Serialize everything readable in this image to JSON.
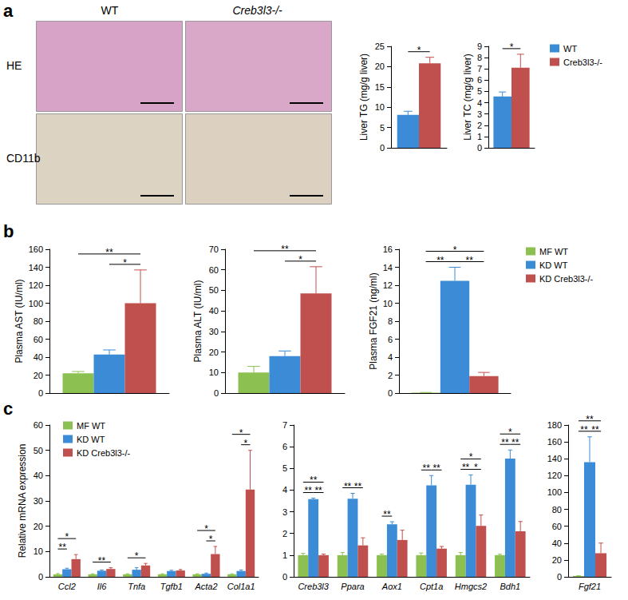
{
  "figure": {
    "panel_labels": [
      "a",
      "b",
      "c"
    ],
    "image_columns": [
      "WT",
      "Creb3l3-/-"
    ],
    "image_rows": [
      "HE",
      "CD11b"
    ]
  },
  "chart_data": [
    {
      "type": "bar",
      "y_label": "Liver TG (mg/g liver)",
      "categories": [
        null
      ],
      "series": [
        {
          "name": "WT",
          "color": "#3b8bd6",
          "values": [
            8.1
          ],
          "errors": [
            0.9
          ]
        },
        {
          "name": "Creb3l3-/-",
          "color": "#c0504d",
          "values": [
            20.8
          ],
          "errors": [
            1.5
          ]
        }
      ],
      "ylim": [
        0,
        25
      ],
      "yticks": [
        0,
        5,
        10,
        15,
        20,
        25
      ],
      "grid": false,
      "significance": [
        {
          "pair": [
            "WT",
            "Creb3l3-/-"
          ],
          "label": "*"
        }
      ]
    },
    {
      "type": "bar",
      "y_label": "Liver TC (mg/g liver)",
      "categories": [
        null
      ],
      "series": [
        {
          "name": "WT",
          "color": "#3b8bd6",
          "values": [
            4.55
          ],
          "errors": [
            0.4
          ]
        },
        {
          "name": "Creb3l3-/-",
          "color": "#c0504d",
          "values": [
            7.1
          ],
          "errors": [
            1.2
          ]
        }
      ],
      "ylim": [
        0,
        9
      ],
      "yticks": [
        0,
        1,
        2,
        3,
        4,
        5,
        6,
        7,
        8,
        9
      ],
      "grid": false,
      "legend": "right",
      "significance": [
        {
          "pair": [
            "WT",
            "Creb3l3-/-"
          ],
          "label": "*"
        }
      ]
    },
    {
      "type": "bar",
      "y_label": "Plasma AST (IU/ml)",
      "categories": [
        null
      ],
      "series": [
        {
          "name": "MF WT",
          "color": "#8cc152",
          "values": [
            22
          ],
          "errors": [
            2
          ]
        },
        {
          "name": "KD WT",
          "color": "#3b8bd6",
          "values": [
            43
          ],
          "errors": [
            5
          ]
        },
        {
          "name": "KD Creb3l3-/-",
          "color": "#c0504d",
          "values": [
            100
          ],
          "errors": [
            37
          ]
        }
      ],
      "ylim": [
        0,
        160
      ],
      "yticks": [
        0,
        20,
        40,
        60,
        80,
        100,
        120,
        140,
        160
      ],
      "grid": false,
      "significance": [
        {
          "pair": [
            "MF WT",
            "KD Creb3l3-/-"
          ],
          "label": "**"
        },
        {
          "pair": [
            "KD WT",
            "KD Creb3l3-/-"
          ],
          "label": "*"
        }
      ]
    },
    {
      "type": "bar",
      "y_label": "Plasma ALT (IU/ml)",
      "categories": [
        null
      ],
      "series": [
        {
          "name": "MF WT",
          "color": "#8cc152",
          "values": [
            10
          ],
          "errors": [
            3
          ]
        },
        {
          "name": "KD WT",
          "color": "#3b8bd6",
          "values": [
            18
          ],
          "errors": [
            2.5
          ]
        },
        {
          "name": "KD Creb3l3-/-",
          "color": "#c0504d",
          "values": [
            48.5
          ],
          "errors": [
            13
          ]
        }
      ],
      "ylim": [
        0,
        70
      ],
      "yticks": [
        0,
        10,
        20,
        30,
        40,
        50,
        60,
        70
      ],
      "grid": false,
      "significance": [
        {
          "pair": [
            "MF WT",
            "KD Creb3l3-/-"
          ],
          "label": "**"
        },
        {
          "pair": [
            "KD WT",
            "KD Creb3l3-/-"
          ],
          "label": "*"
        }
      ]
    },
    {
      "type": "bar",
      "y_label": "Plasma FGF21 (ng/ml)",
      "categories": [
        null
      ],
      "series": [
        {
          "name": "MF WT",
          "color": "#8cc152",
          "values": [
            0.05
          ],
          "errors": [
            0.02
          ]
        },
        {
          "name": "KD WT",
          "color": "#3b8bd6",
          "values": [
            12.5
          ],
          "errors": [
            1.5
          ]
        },
        {
          "name": "KD Creb3l3-/-",
          "color": "#c0504d",
          "values": [
            1.9
          ],
          "errors": [
            0.4
          ]
        }
      ],
      "ylim": [
        0,
        16
      ],
      "yticks": [
        0,
        2,
        4,
        6,
        8,
        10,
        12,
        14,
        16
      ],
      "grid": false,
      "legend": "right",
      "significance": [
        {
          "pair": [
            "MF WT",
            "KD WT"
          ],
          "label": "**"
        },
        {
          "pair": [
            "KD WT",
            "KD Creb3l3-/-"
          ],
          "label": "**"
        },
        {
          "pair": [
            "MF WT",
            "KD Creb3l3-/-"
          ],
          "label": "*"
        }
      ]
    },
    {
      "type": "bar",
      "y_label": "Relative mRNA expression",
      "categories": [
        "Ccl2",
        "Il6",
        "Tnfa",
        "Tgfb1",
        "Acta2",
        "Col1a1"
      ],
      "series": [
        {
          "name": "MF WT",
          "color": "#8cc152",
          "values": [
            1,
            1,
            1,
            1,
            1,
            1
          ],
          "errors": [
            0.3,
            0.2,
            0.2,
            0.2,
            0.2,
            0.2
          ]
        },
        {
          "name": "KD WT",
          "color": "#3b8bd6",
          "values": [
            3,
            2.4,
            2.8,
            2.3,
            1.2,
            2.3
          ],
          "errors": [
            0.4,
            0.3,
            0.8,
            0.3,
            0.3,
            0.4
          ]
        },
        {
          "name": "KD Creb3l3-/-",
          "color": "#c0504d",
          "values": [
            7,
            3.1,
            4.5,
            2.5,
            9,
            34.5
          ],
          "errors": [
            1.8,
            0.5,
            0.8,
            0.4,
            3,
            15.5
          ]
        }
      ],
      "ylim": [
        0,
        60
      ],
      "yticks": [
        0,
        10,
        20,
        30,
        40,
        50,
        60
      ],
      "grid": false,
      "legend": "upper left",
      "significance": [
        {
          "category": "Ccl2",
          "pair": [
            "MF WT",
            "KD WT"
          ],
          "label": "**"
        },
        {
          "category": "Ccl2",
          "pair": [
            "MF WT",
            "KD Creb3l3-/-"
          ],
          "label": "*"
        },
        {
          "category": "Il6",
          "pair": [
            "MF WT",
            "KD Creb3l3-/-"
          ],
          "label": "**"
        },
        {
          "category": "Tnfa",
          "pair": [
            "MF WT",
            "KD Creb3l3-/-"
          ],
          "label": "*"
        },
        {
          "category": "Acta2",
          "pair": [
            "MF WT",
            "KD Creb3l3-/-"
          ],
          "label": "*"
        },
        {
          "category": "Acta2",
          "pair": [
            "KD WT",
            "KD Creb3l3-/-"
          ],
          "label": "*"
        },
        {
          "category": "Col1a1",
          "pair": [
            "MF WT",
            "KD Creb3l3-/-"
          ],
          "label": "*"
        },
        {
          "category": "Col1a1",
          "pair": [
            "KD WT",
            "KD Creb3l3-/-"
          ],
          "label": "*"
        }
      ]
    },
    {
      "type": "bar",
      "categories": [
        "Creb3l3",
        "Ppara",
        "Aox1",
        "Cpt1a",
        "Hmgcs2",
        "Bdh1"
      ],
      "series": [
        {
          "name": "MF WT",
          "color": "#8cc152",
          "values": [
            1,
            1,
            1,
            1,
            1,
            1
          ],
          "errors": [
            0.08,
            0.12,
            0.05,
            0.1,
            0.12,
            0.04
          ]
        },
        {
          "name": "KD WT",
          "color": "#3b8bd6",
          "values": [
            3.58,
            3.6,
            2.42,
            4.22,
            4.25,
            5.45
          ],
          "errors": [
            0.05,
            0.25,
            0.12,
            0.45,
            0.45,
            0.4
          ]
        },
        {
          "name": "KD Creb3l3-/-",
          "color": "#c0504d",
          "values": [
            1,
            1.45,
            1.7,
            1.3,
            2.35,
            2.1
          ],
          "errors": [
            0.05,
            0.35,
            0.45,
            0.1,
            0.5,
            0.45
          ]
        }
      ],
      "ylim": [
        0,
        7
      ],
      "yticks": [
        0,
        1,
        2,
        3,
        4,
        5,
        6,
        7
      ],
      "grid": false,
      "significance": [
        {
          "category": "Creb3l3",
          "pair": [
            "MF WT",
            "KD WT"
          ],
          "label": "**"
        },
        {
          "category": "Creb3l3",
          "pair": [
            "KD WT",
            "KD Creb3l3-/-"
          ],
          "label": "**"
        },
        {
          "category": "Creb3l3",
          "pair": [
            "MF WT",
            "KD Creb3l3-/-"
          ],
          "label": "**"
        },
        {
          "category": "Ppara",
          "pair": [
            "MF WT",
            "KD WT"
          ],
          "label": "**"
        },
        {
          "category": "Ppara",
          "pair": [
            "KD WT",
            "KD Creb3l3-/-"
          ],
          "label": "**"
        },
        {
          "category": "Aox1",
          "pair": [
            "MF WT",
            "KD WT"
          ],
          "label": "**"
        },
        {
          "category": "Cpt1a",
          "pair": [
            "MF WT",
            "KD WT"
          ],
          "label": "**"
        },
        {
          "category": "Cpt1a",
          "pair": [
            "KD WT",
            "KD Creb3l3-/-"
          ],
          "label": "**"
        },
        {
          "category": "Hmgcs2",
          "pair": [
            "MF WT",
            "KD WT"
          ],
          "label": "**"
        },
        {
          "category": "Hmgcs2",
          "pair": [
            "KD WT",
            "KD Creb3l3-/-"
          ],
          "label": "*"
        },
        {
          "category": "Hmgcs2",
          "pair": [
            "MF WT",
            "KD Creb3l3-/-"
          ],
          "label": "*"
        },
        {
          "category": "Bdh1",
          "pair": [
            "MF WT",
            "KD WT"
          ],
          "label": "**"
        },
        {
          "category": "Bdh1",
          "pair": [
            "KD WT",
            "KD Creb3l3-/-"
          ],
          "label": "**"
        },
        {
          "category": "Bdh1",
          "pair": [
            "MF WT",
            "KD Creb3l3-/-"
          ],
          "label": "*"
        }
      ]
    },
    {
      "type": "bar",
      "categories": [
        "Fgf21"
      ],
      "series": [
        {
          "name": "MF WT",
          "color": "#8cc152",
          "values": [
            1
          ],
          "errors": [
            0.3
          ]
        },
        {
          "name": "KD WT",
          "color": "#3b8bd6",
          "values": [
            136
          ],
          "errors": [
            30
          ]
        },
        {
          "name": "KD Creb3l3-/-",
          "color": "#c0504d",
          "values": [
            28
          ],
          "errors": [
            12
          ]
        }
      ],
      "ylim": [
        0,
        180
      ],
      "yticks": [
        0,
        20,
        40,
        60,
        80,
        100,
        120,
        140,
        160,
        180
      ],
      "grid": false,
      "significance": [
        {
          "category": "Fgf21",
          "pair": [
            "MF WT",
            "KD WT"
          ],
          "label": "**"
        },
        {
          "category": "Fgf21",
          "pair": [
            "KD WT",
            "KD Creb3l3-/-"
          ],
          "label": "**"
        },
        {
          "category": "Fgf21",
          "pair": [
            "MF WT",
            "KD Creb3l3-/-"
          ],
          "label": "**"
        }
      ]
    }
  ]
}
